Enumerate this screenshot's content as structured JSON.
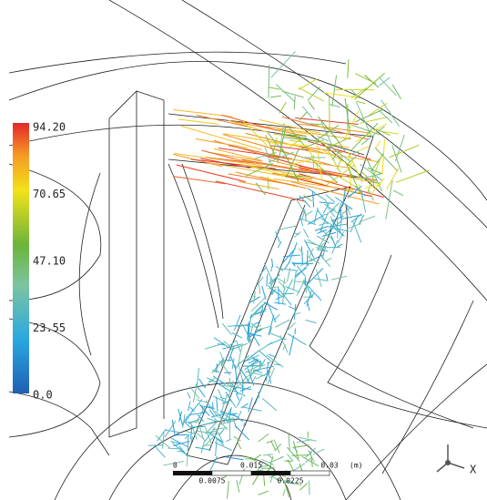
{
  "legend": {
    "ticks": [
      "94.20",
      "70.65",
      "47.10",
      "23.55",
      "0.0"
    ]
  },
  "scale_bar": {
    "labels": [
      "0",
      "0.0075",
      "0.015",
      "0.0225",
      "0.03"
    ],
    "unit": "(m)"
  },
  "axis": {
    "label": "X"
  }
}
